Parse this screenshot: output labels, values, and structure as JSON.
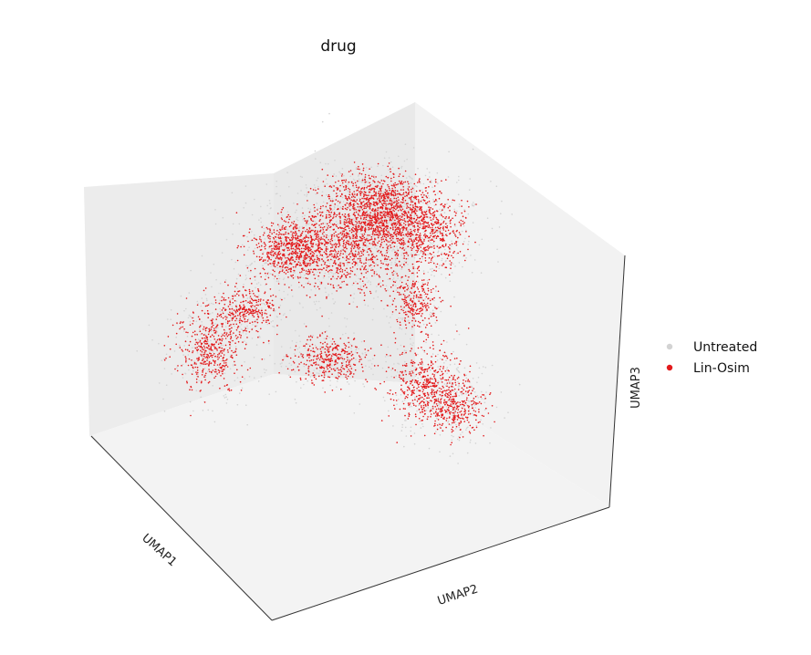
{
  "chart_data": {
    "type": "scatter",
    "title": "drug",
    "xlabel": "UMAP1",
    "ylabel": "UMAP2",
    "zlabel": "UMAP3",
    "projection": "3d",
    "grid": false,
    "legend": {
      "placement": "right"
    },
    "series": [
      {
        "name": "Untreated",
        "color": "#d3d3d3"
      },
      {
        "name": "Lin-Osim",
        "color": "#e31a1c"
      }
    ]
  }
}
